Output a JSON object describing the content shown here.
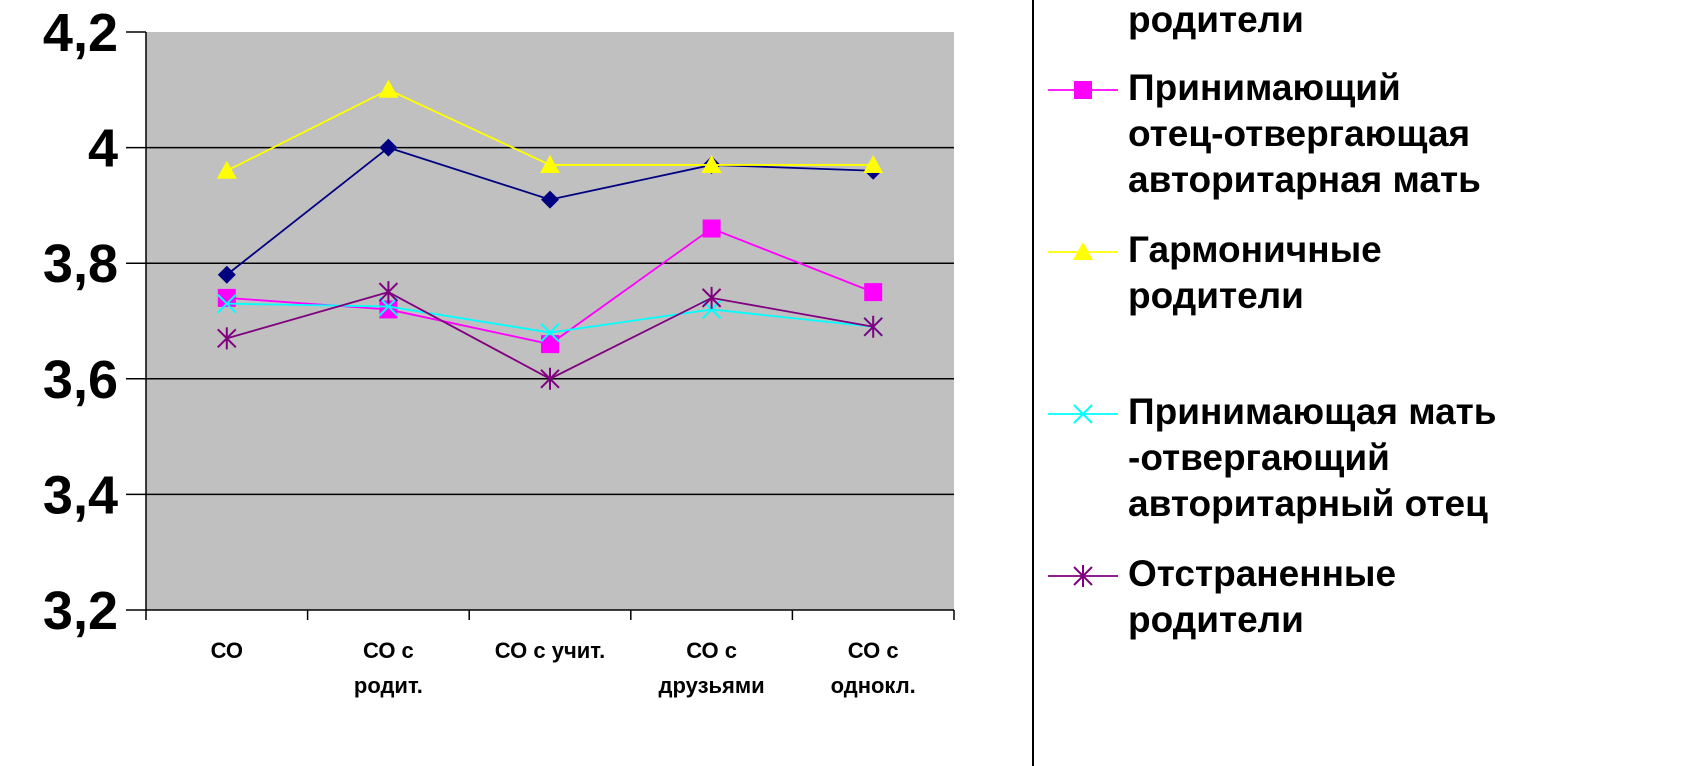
{
  "chart_data": {
    "type": "line",
    "categories": [
      [
        "СО"
      ],
      [
        "СО с",
        "родит."
      ],
      [
        "СО с учит."
      ],
      [
        "СО с",
        "друзьями"
      ],
      [
        "СО с",
        "однокл."
      ]
    ],
    "ylim": [
      3.2,
      4.2
    ],
    "yticks": [
      "3,2",
      "3,4",
      "3,6",
      "3,8",
      "4",
      "4,2"
    ],
    "ytick_values": [
      3.2,
      3.4,
      3.6,
      3.8,
      4.0,
      4.2
    ],
    "grid": true,
    "plot_background": "#c0c0c0",
    "legend_position": "right",
    "series": [
      {
        "legend_lines": [
          "родители"
        ],
        "color": "#000080",
        "marker": "diamond",
        "values": [
          3.78,
          4.0,
          3.91,
          3.97,
          3.96
        ]
      },
      {
        "legend_lines": [
          "Принимающий",
          "отец-отвергающая",
          "авторитарная мать"
        ],
        "color": "#ff00ff",
        "marker": "square",
        "values": [
          3.74,
          3.72,
          3.66,
          3.86,
          3.75
        ]
      },
      {
        "legend_lines": [
          "Гармоничные",
          "родители"
        ],
        "color": "#ffff00",
        "marker": "triangle",
        "values": [
          3.96,
          4.1,
          3.97,
          3.97,
          3.97
        ]
      },
      {
        "legend_lines": [
          "Принимающая мать",
          "-отвергающий",
          "авторитарный отец"
        ],
        "color": "#00ffff",
        "marker": "x",
        "values": [
          3.73,
          3.725,
          3.68,
          3.72,
          3.69
        ]
      },
      {
        "legend_lines": [
          "Отстраненные",
          "родители"
        ],
        "color": "#800080",
        "marker": "star",
        "values": [
          3.67,
          3.75,
          3.6,
          3.74,
          3.69
        ]
      }
    ]
  }
}
